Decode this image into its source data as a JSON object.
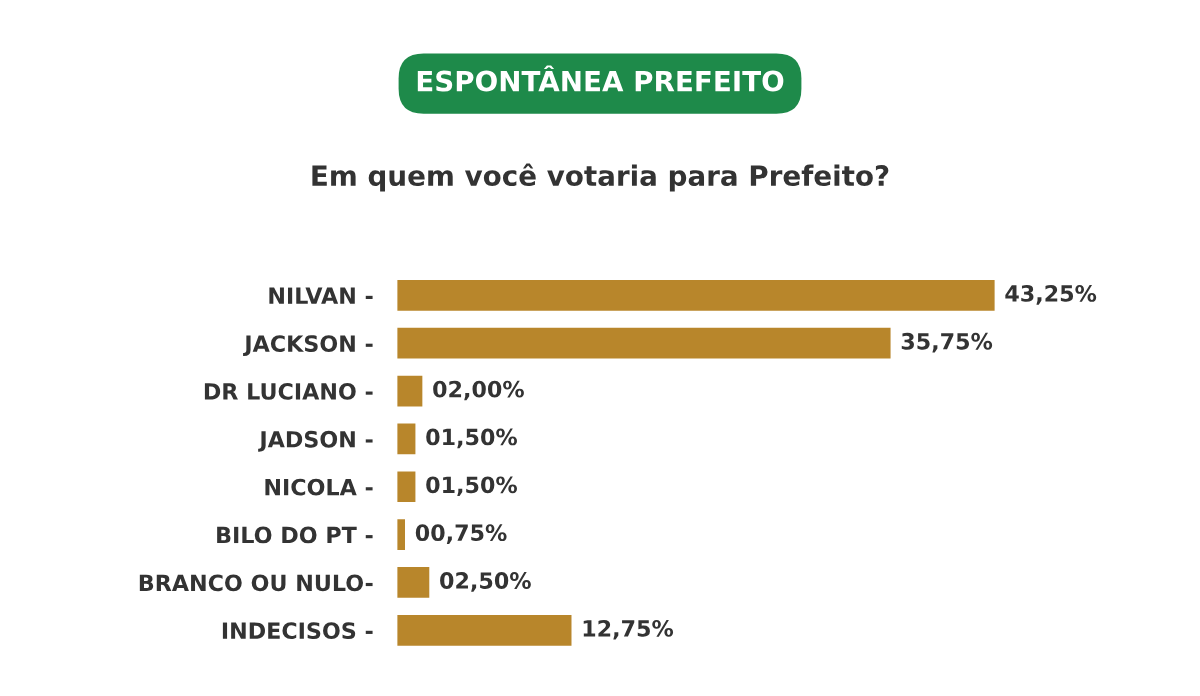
{
  "chart_data": {
    "type": "bar",
    "orientation": "horizontal",
    "title": "ESPONTÂNEA PREFEITO",
    "subtitle": "Em quem você votaria para Prefeito?",
    "categories": [
      "NILVAN -",
      "JACKSON -",
      "DR LUCIANO -",
      "JADSON -",
      "NICOLA -",
      "BILO DO PT -",
      "BRANCO OU NULO-",
      "INDECISOS -"
    ],
    "series": [
      {
        "color": "#b8862b",
        "values": [
          43.25,
          35.75,
          2.0,
          1.5,
          1.5,
          0.75,
          2.5,
          12.75
        ],
        "value_labels": [
          "43,25%",
          "35,75%",
          "02,00%",
          "01,50%",
          "01,50%",
          "00,75%",
          "02,50%",
          "12,75%"
        ]
      }
    ],
    "legend": false,
    "grid": false
  }
}
